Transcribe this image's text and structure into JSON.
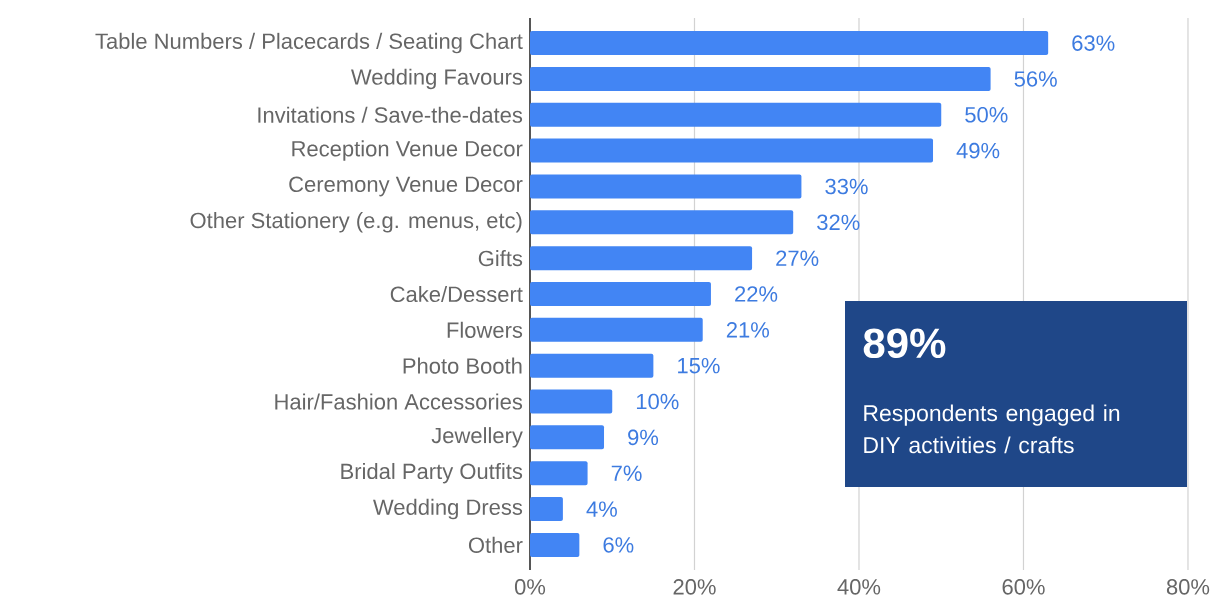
{
  "chart_data": {
    "type": "bar",
    "orientation": "horizontal",
    "categories": [
      "Table Numbers / Placecards / Seating Chart",
      "Wedding Favours",
      "Invitations / Save-the-dates",
      "Reception Venue Decor",
      "Ceremony Venue Decor",
      "Other Stationery (e.g. menus, etc)",
      "Gifts",
      "Cake/Dessert",
      "Flowers",
      "Photo Booth",
      "Hair/Fashion Accessories",
      "Jewellery",
      "Bridal Party Outfits",
      "Wedding Dress",
      "Other"
    ],
    "values": [
      63,
      56,
      50,
      49,
      33,
      32,
      27,
      22,
      21,
      15,
      10,
      9,
      7,
      4,
      6
    ],
    "value_labels": [
      "63%",
      "56%",
      "50%",
      "49%",
      "33%",
      "32%",
      "27%",
      "22%",
      "21%",
      "15%",
      "10%",
      "9%",
      "7%",
      "4%",
      "6%"
    ],
    "color": "#4285f4",
    "xlim": [
      0,
      80
    ],
    "xticks": [
      {
        "value": 0,
        "label": "0%"
      },
      {
        "value": 20,
        "label": "20%"
      },
      {
        "value": 40,
        "label": "40%"
      },
      {
        "value": 60,
        "label": "60%"
      },
      {
        "value": 80,
        "label": "80%"
      }
    ],
    "grid": "x",
    "annotations": [
      "89%",
      "Respondents engaged in DIY activities / crafts"
    ]
  }
}
